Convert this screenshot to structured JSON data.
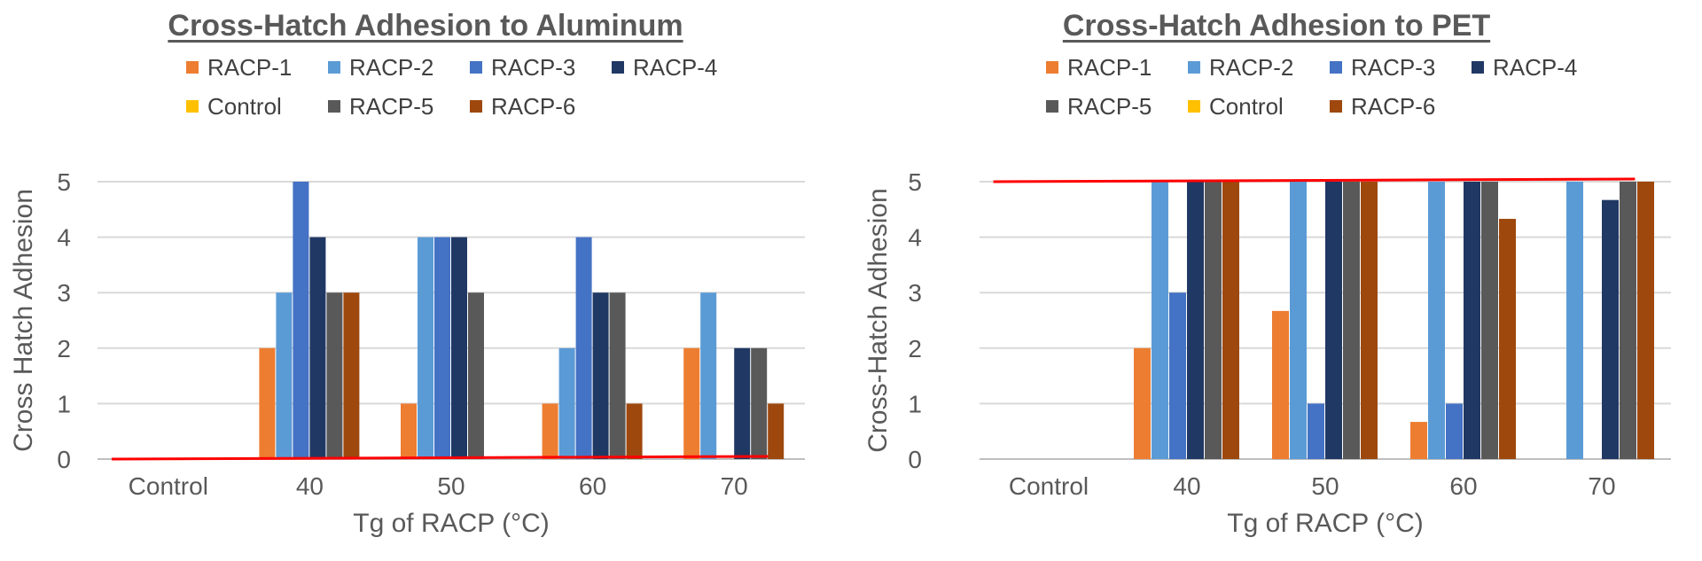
{
  "chart_data": [
    {
      "type": "bar",
      "title": "Cross-Hatch Adhesion to Aluminum",
      "xlabel": "Tg of RACP (°C)",
      "ylabel": "Cross Hatch Adhesion",
      "categories": [
        "Control",
        "40",
        "50",
        "60",
        "70"
      ],
      "ylim": [
        0,
        5
      ],
      "yticks": [
        "0",
        "1",
        "2",
        "3",
        "4",
        "5"
      ],
      "grid": true,
      "legend_position": "top",
      "legend_order": [
        "RACP-1",
        "RACP-2",
        "RACP-3",
        "RACP-4",
        "Control",
        "RACP-5",
        "RACP-6"
      ],
      "series": [
        {
          "name": "RACP-1",
          "color": "#ED7D31",
          "values": [
            0,
            2,
            1,
            1,
            2
          ]
        },
        {
          "name": "RACP-2",
          "color": "#5B9BD5",
          "values": [
            0,
            3,
            4,
            2,
            3
          ]
        },
        {
          "name": "RACP-3",
          "color": "#4472C4",
          "values": [
            0,
            5,
            4,
            4,
            0
          ]
        },
        {
          "name": "RACP-4",
          "color": "#203864",
          "values": [
            0,
            4,
            4,
            3,
            2
          ]
        },
        {
          "name": "RACP-5",
          "color": "#595959",
          "values": [
            0,
            3,
            3,
            3,
            2
          ]
        },
        {
          "name": "RACP-6",
          "color": "#9E480E",
          "values": [
            0,
            3,
            0,
            1,
            1
          ]
        },
        {
          "name": "Control",
          "color": "#FFC000",
          "values": [
            0,
            0,
            0,
            0,
            0
          ]
        }
      ],
      "reference_line": {
        "color": "#FF0000",
        "from": [
          "Control",
          0
        ],
        "to": [
          "70",
          0
        ]
      }
    },
    {
      "type": "bar",
      "title": "Cross-Hatch Adhesion to PET",
      "xlabel": "Tg of RACP (°C)",
      "ylabel": "Cross-Hatch Adhesion",
      "categories": [
        "Control",
        "40",
        "50",
        "60",
        "70"
      ],
      "ylim": [
        0,
        5
      ],
      "yticks": [
        "0",
        "1",
        "2",
        "3",
        "4",
        "5"
      ],
      "grid": true,
      "legend_position": "top",
      "legend_order": [
        "RACP-1",
        "RACP-2",
        "RACP-3",
        "RACP-4",
        "RACP-5",
        "Control",
        "RACP-6"
      ],
      "series": [
        {
          "name": "RACP-1",
          "color": "#ED7D31",
          "values": [
            0,
            2,
            2.67,
            0.67,
            0
          ]
        },
        {
          "name": "RACP-2",
          "color": "#5B9BD5",
          "values": [
            0,
            5,
            5,
            5,
            5
          ]
        },
        {
          "name": "RACP-3",
          "color": "#4472C4",
          "values": [
            0,
            3,
            1,
            1,
            0
          ]
        },
        {
          "name": "RACP-4",
          "color": "#203864",
          "values": [
            0,
            5,
            5,
            5,
            4.67
          ]
        },
        {
          "name": "RACP-5",
          "color": "#595959",
          "values": [
            0,
            5,
            5,
            5,
            5
          ]
        },
        {
          "name": "Control",
          "color": "#FFC000",
          "values": [
            0,
            0,
            0,
            0,
            0
          ]
        },
        {
          "name": "RACP-6",
          "color": "#9E480E",
          "values": [
            0,
            5,
            5,
            4.33,
            5
          ]
        }
      ],
      "reference_line": {
        "color": "#FF0000",
        "from": [
          "Control",
          5
        ],
        "to": [
          "70",
          5
        ]
      }
    }
  ]
}
